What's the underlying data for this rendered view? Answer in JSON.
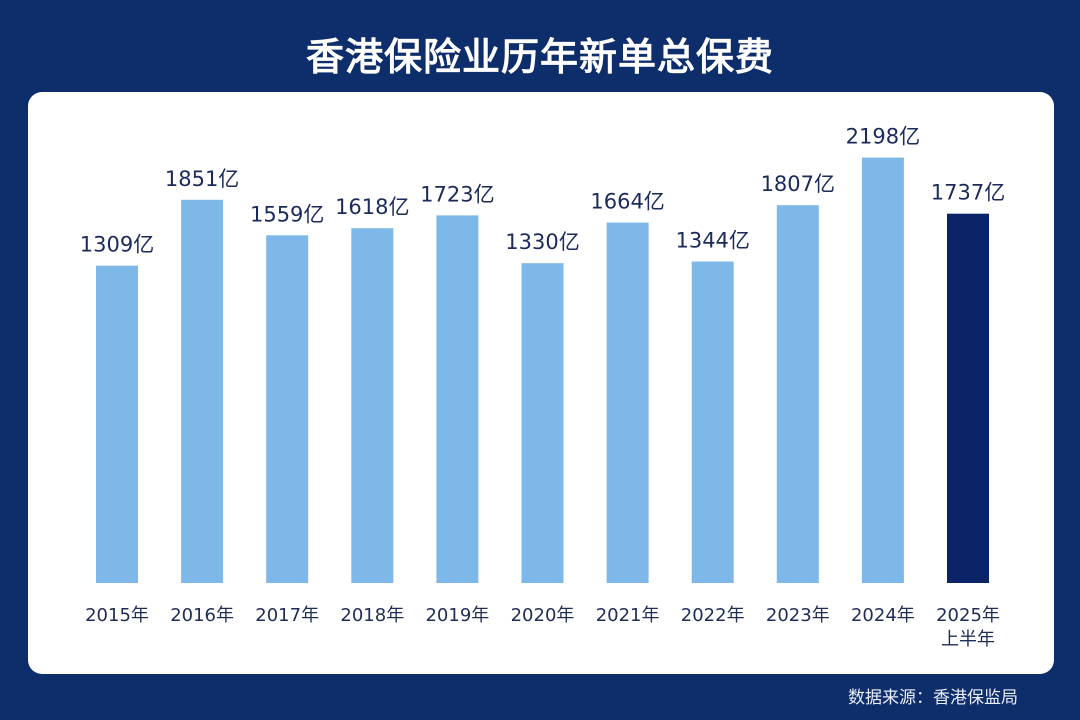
{
  "title": "香港保险业历年新单总保费",
  "source": "数据来源：香港保监局",
  "colors": {
    "background": "#0e2d6b",
    "bar": "#7db8e8",
    "bar_highlight": "#0b2468",
    "label": "#1a2a5a"
  },
  "chart_data": {
    "type": "bar",
    "title": "香港保险业历年新单总保费",
    "categories": [
      [
        "2015年"
      ],
      [
        "2016年"
      ],
      [
        "2017年"
      ],
      [
        "2018年"
      ],
      [
        "2019年"
      ],
      [
        "2020年"
      ],
      [
        "2021年"
      ],
      [
        "2022年"
      ],
      [
        "2023年"
      ],
      [
        "2024年"
      ],
      [
        "2025年",
        "上半年"
      ]
    ],
    "values": [
      1309,
      1851,
      1559,
      1618,
      1723,
      1330,
      1664,
      1344,
      1807,
      2198,
      1737
    ],
    "value_labels": [
      "1309亿",
      "1851亿",
      "1559亿",
      "1618亿",
      "1723亿",
      "1330亿",
      "1664亿",
      "1344亿",
      "1807亿",
      "2198亿",
      "1737亿"
    ],
    "unit": "亿",
    "highlight_index": 10,
    "ylim": [
      -1300,
      2250
    ],
    "grid": false,
    "legend": "none"
  }
}
